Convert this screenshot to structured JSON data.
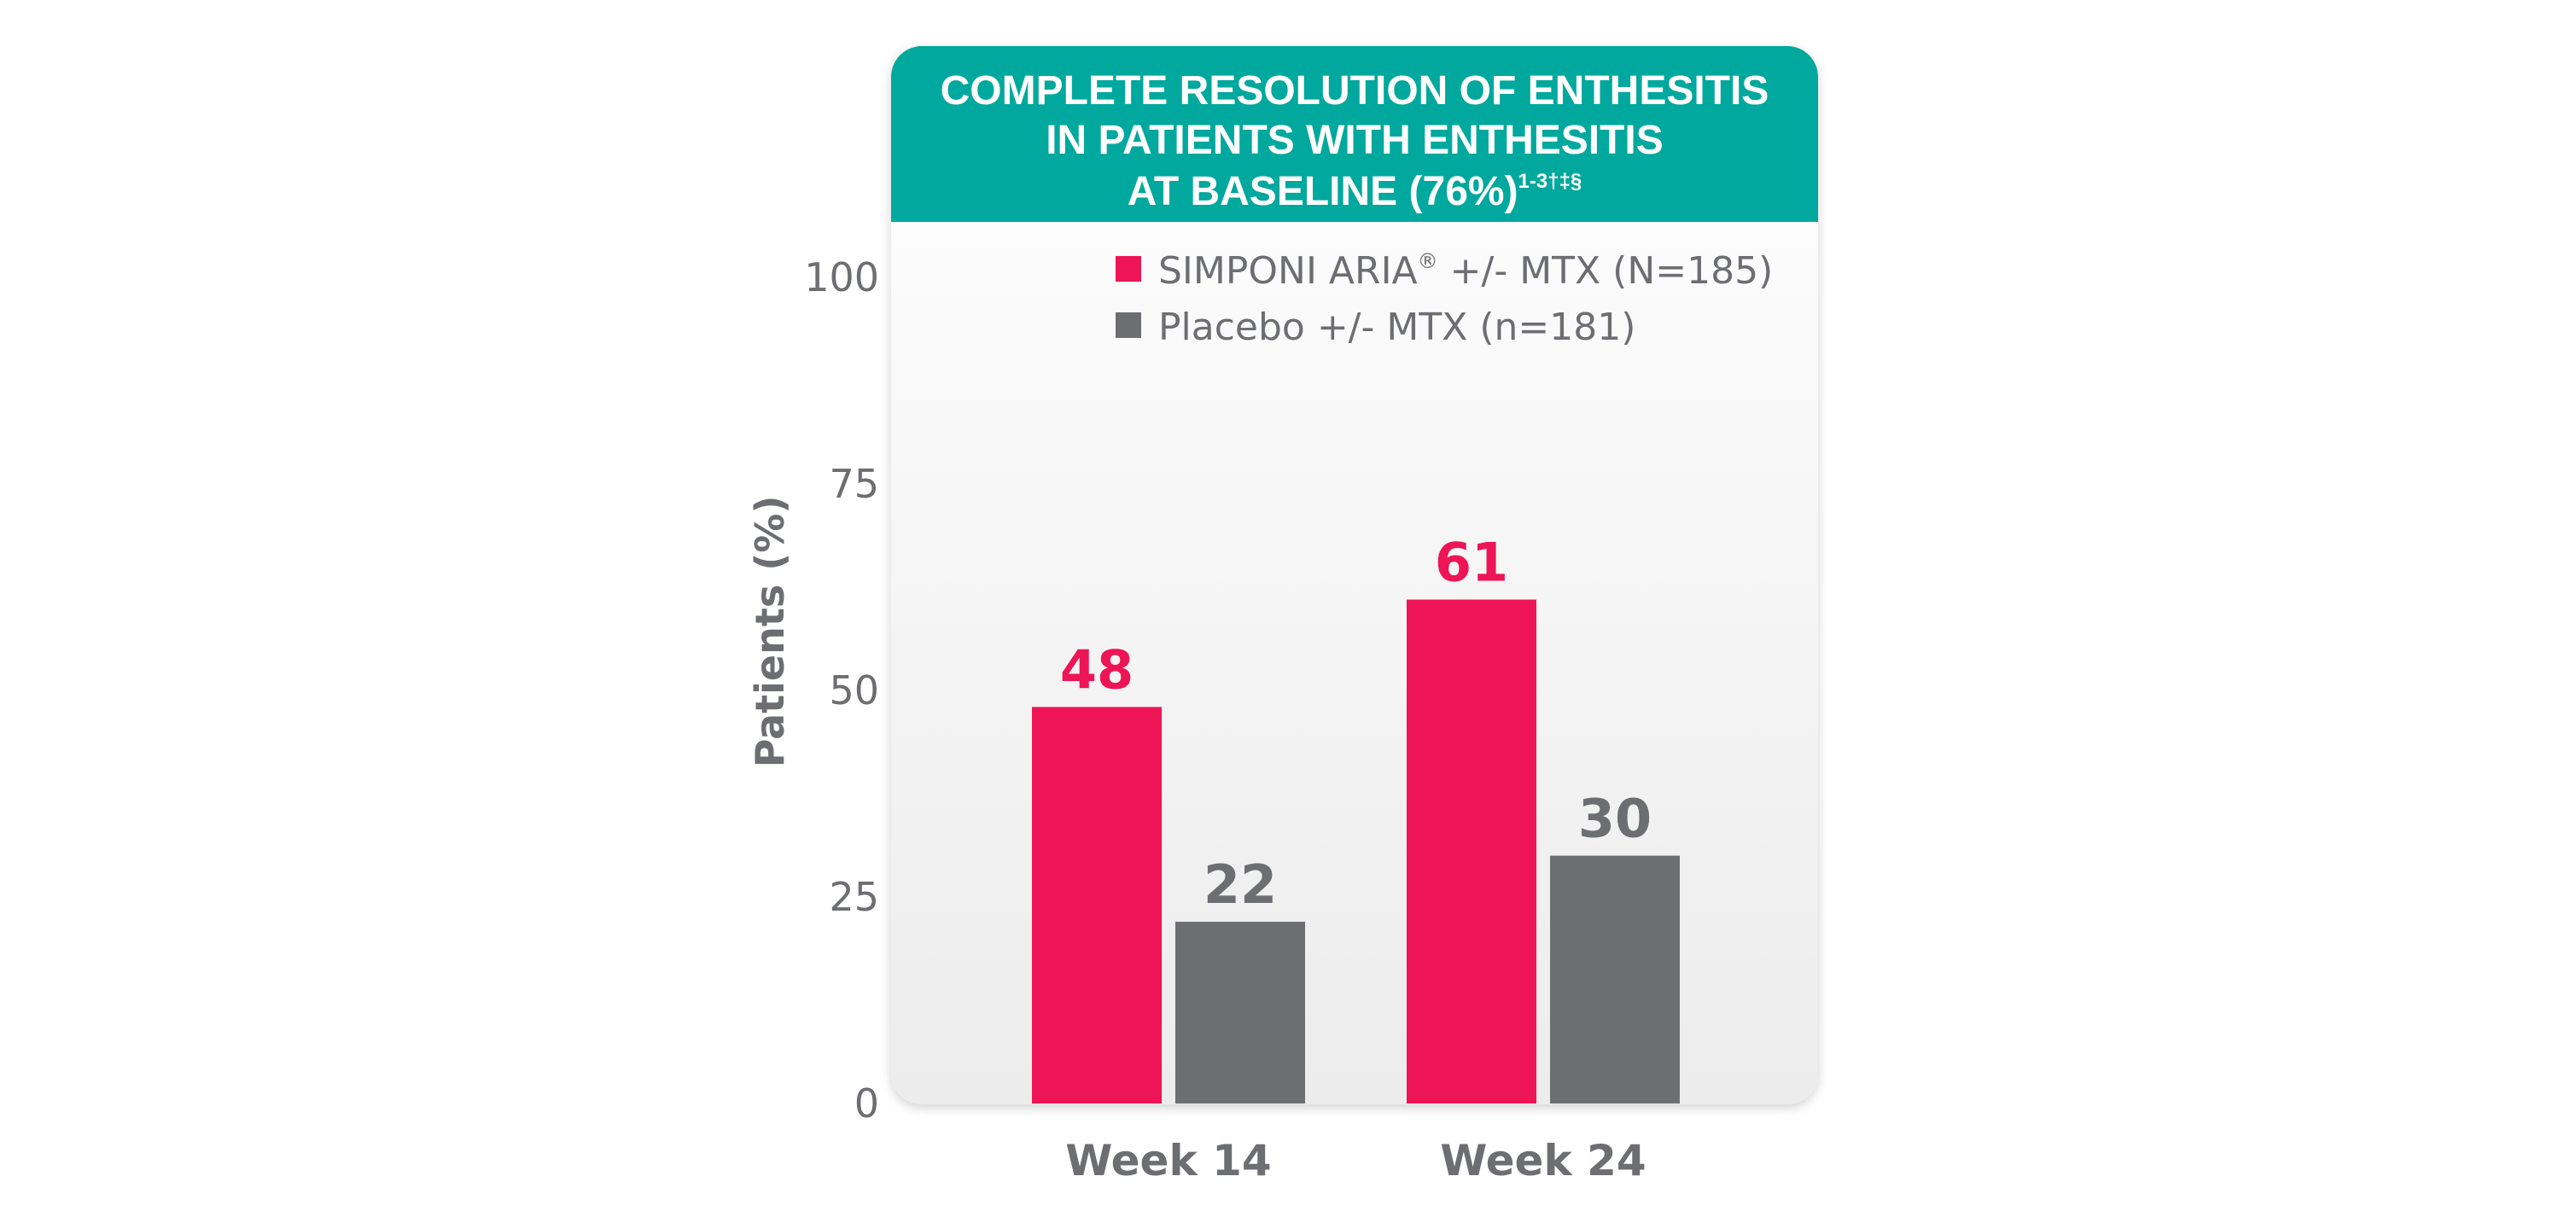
{
  "title": {
    "lines": [
      "COMPLETE RESOLUTION OF ENTHESITIS",
      "IN PATIENTS WITH ENTHESITIS",
      "AT BASELINE (76%)"
    ],
    "superscript": "1-3†‡§"
  },
  "colors": {
    "header_bg": "#00a89d",
    "simponi": "#ed1556",
    "placebo": "#6d6e71",
    "text_gray": "#6d6e71",
    "panel_top": "#ffffff",
    "panel_bottom": "#ececec"
  },
  "chart_data": {
    "type": "bar",
    "categories": [
      "Week 14",
      "Week 24"
    ],
    "series": [
      {
        "name": "SIMPONI ARIA® +/- MTX (N=185)",
        "values": [
          48,
          61
        ]
      },
      {
        "name": "Placebo +/- MTX (n=181)",
        "values": [
          22,
          30
        ]
      }
    ],
    "ylabel": "Patients (%)",
    "ylim": [
      0,
      100
    ],
    "yticks": [
      "0",
      "25",
      "50",
      "75",
      "100"
    ],
    "value_labels": [
      [
        "48",
        "61"
      ],
      [
        "22",
        "30"
      ]
    ],
    "legend_placement": "top-right",
    "grid": false
  },
  "legend": {
    "items": [
      {
        "main": "SIMPONI ARIA",
        "sup": "®",
        "rest": " +/- MTX (N=185)"
      },
      {
        "main": "Placebo +/- MTX (n=181)",
        "sup": "",
        "rest": ""
      }
    ]
  }
}
